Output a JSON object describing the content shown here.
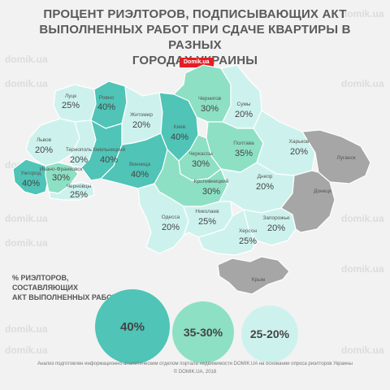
{
  "title": {
    "line1": "ПРОЦЕНТ РИЭЛТОРОВ, ПОДПИСЫВАЮЩИХ АКТ",
    "line2": "ВЫПОЛНЕННЫХ РАБОТ ПРИ СДАЧЕ КВАРТИРЫ В РАЗНЫХ",
    "line3": "ГОРОДАХ УКРАИНЫ"
  },
  "badge": "Domik.ua",
  "watermark": "domik.ua",
  "colors": {
    "high": "#4fc4b7",
    "mid": "#8de0c4",
    "low": "#cdf2ee",
    "occupied": "#a6a6a6",
    "crimea": "#a6a6a6"
  },
  "regions": [
    {
      "city": "Луцк",
      "value": "25%"
    },
    {
      "city": "Ровно",
      "value": "40%"
    },
    {
      "city": "Житомир",
      "value": "20%"
    },
    {
      "city": "Киев",
      "value": "40%"
    },
    {
      "city": "Чернигов",
      "value": "30%"
    },
    {
      "city": "Сумы",
      "value": "20%"
    },
    {
      "city": "Львов",
      "value": "20%"
    },
    {
      "city": "Тернополь",
      "value": "20%"
    },
    {
      "city": "Хмельницкий",
      "value": "40%"
    },
    {
      "city": "Винница",
      "value": "40%"
    },
    {
      "city": "Черкассы",
      "value": "30%"
    },
    {
      "city": "Полтава",
      "value": "35%"
    },
    {
      "city": "Харьков",
      "value": "20%"
    },
    {
      "city": "Ужгород",
      "value": "40%"
    },
    {
      "city": "Ивано-Франковск",
      "value": "30%"
    },
    {
      "city": "Черновцы",
      "value": "25%"
    },
    {
      "city": "Кропивницкий",
      "value": "30%"
    },
    {
      "city": "Днепр",
      "value": "20%"
    },
    {
      "city": "Одесса",
      "value": "20%"
    },
    {
      "city": "Николаев",
      "value": "25%"
    },
    {
      "city": "Запорожье",
      "value": "20%"
    },
    {
      "city": "Херсон",
      "value": "25%"
    }
  ],
  "occupied": {
    "luhansk": "Луганск",
    "donetsk": "Донецк",
    "crimea": "Крым"
  },
  "legend": {
    "title1": "% РИЭЛТОРОВ, СОСТАВЛЯЮЩИХ",
    "title2": "АКТ ВЫПОЛНЕННЫХ РАБОТ",
    "high": "40%",
    "mid": "35-30%",
    "low": "25-20%"
  },
  "footer": {
    "line1": "Анализ подготовлен информационно-аналитическим отделом портала недвижимости DOMIK.UA на основании опроса риэлторов Украины",
    "line2": "© DOMIK.UA, 2018"
  }
}
